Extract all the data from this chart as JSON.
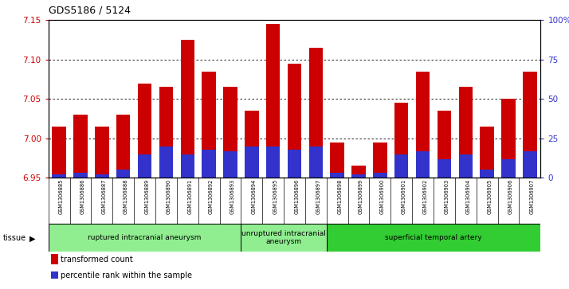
{
  "title": "GDS5186 / 5124",
  "samples": [
    "GSM1306885",
    "GSM1306886",
    "GSM1306887",
    "GSM1306888",
    "GSM1306889",
    "GSM1306890",
    "GSM1306891",
    "GSM1306892",
    "GSM1306893",
    "GSM1306894",
    "GSM1306895",
    "GSM1306896",
    "GSM1306897",
    "GSM1306898",
    "GSM1306899",
    "GSM1306900",
    "GSM1306901",
    "GSM1306902",
    "GSM1306903",
    "GSM1306904",
    "GSM1306905",
    "GSM1306906",
    "GSM1306907"
  ],
  "transformed_count": [
    7.015,
    7.03,
    7.015,
    7.03,
    7.07,
    7.065,
    7.125,
    7.085,
    7.065,
    7.035,
    7.145,
    7.095,
    7.115,
    6.995,
    6.965,
    6.995,
    7.045,
    7.085,
    7.035,
    7.065,
    7.015,
    7.05,
    7.085
  ],
  "percentile_rank": [
    2,
    3,
    2,
    5,
    15,
    20,
    15,
    18,
    17,
    20,
    20,
    18,
    20,
    3,
    2,
    3,
    15,
    17,
    12,
    15,
    5,
    12,
    17
  ],
  "ylim": [
    6.95,
    7.15
  ],
  "yticks": [
    6.95,
    7.0,
    7.05,
    7.1,
    7.15
  ],
  "right_yticks": [
    0,
    25,
    50,
    75,
    100
  ],
  "right_ylabels": [
    "0",
    "25",
    "50",
    "75",
    "100%"
  ],
  "groups": [
    {
      "label": "ruptured intracranial aneurysm",
      "start": 0,
      "end": 9,
      "color": "#90ee90"
    },
    {
      "label": "unruptured intracranial\naneurysm",
      "start": 9,
      "end": 13,
      "color": "#90ee90"
    },
    {
      "label": "superficial temporal artery",
      "start": 13,
      "end": 23,
      "color": "#32cd32"
    }
  ],
  "bar_color": "#cc0000",
  "percentile_color": "#3333cc",
  "bg_color": "#d4d4d4",
  "plot_bg": "#ffffff",
  "left_tick_color": "#cc0000",
  "right_tick_color": "#3333cc"
}
